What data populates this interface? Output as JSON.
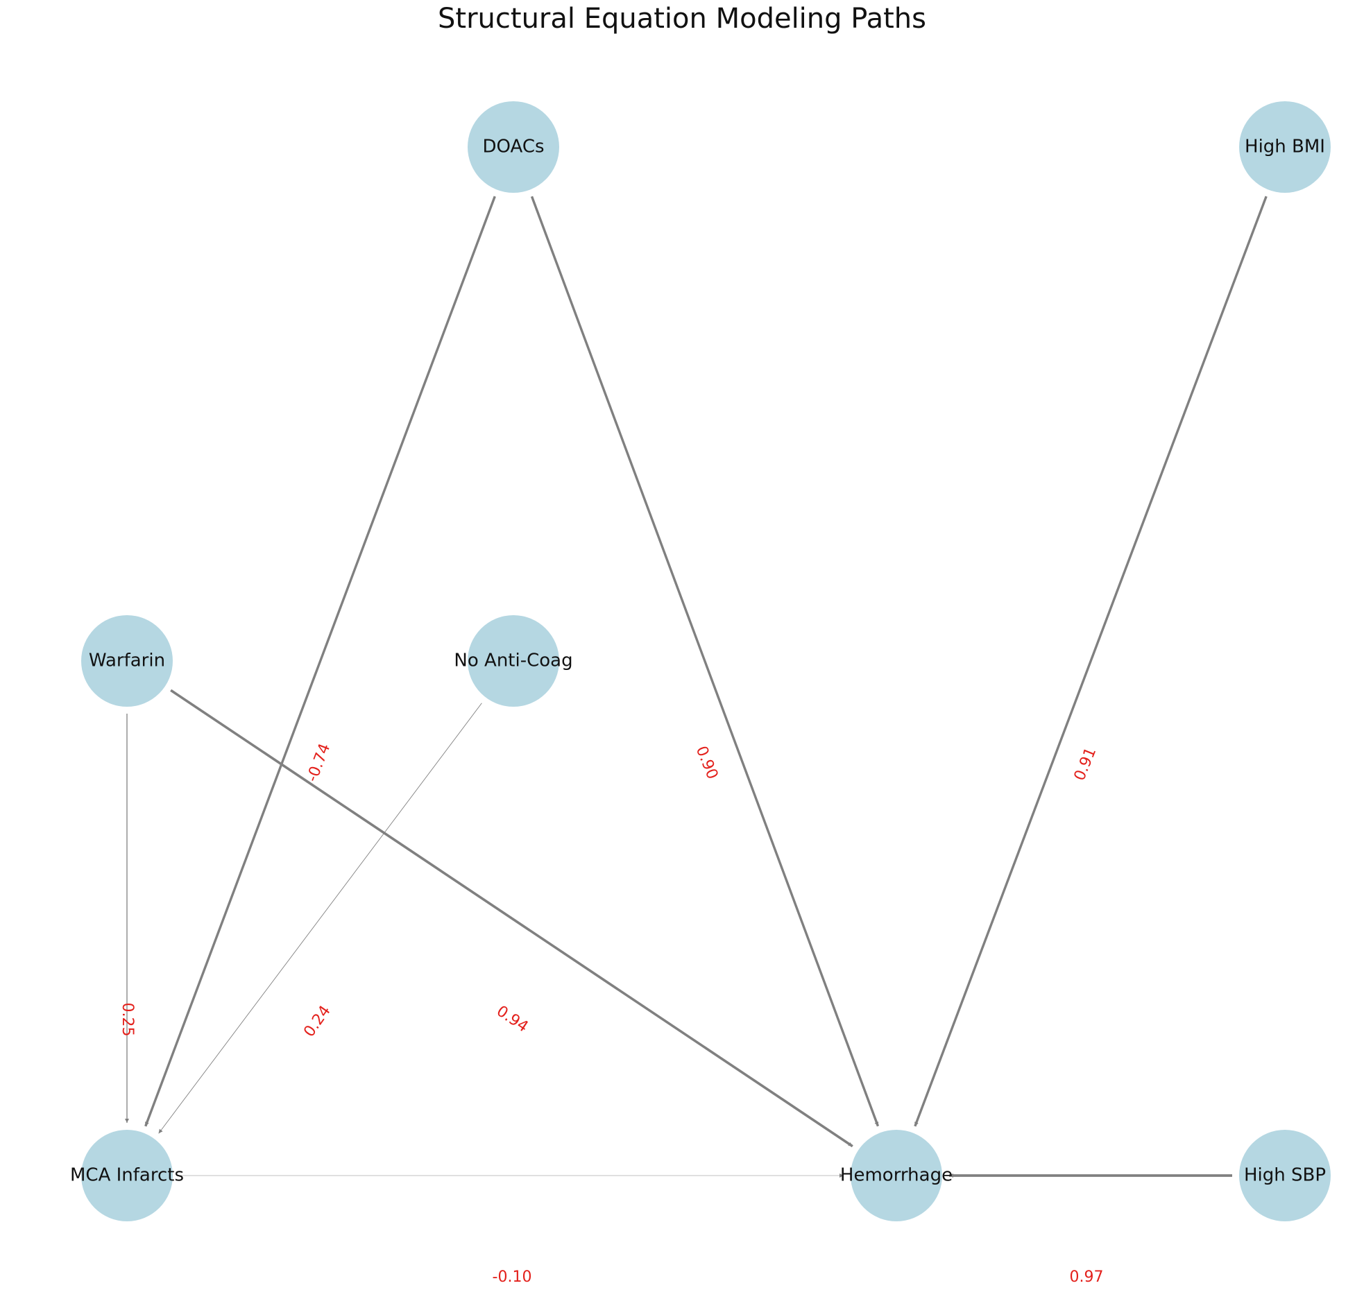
{
  "title": "Structural Equation Modeling Paths",
  "colors": {
    "node_fill": "#b5d7e2",
    "edge": "#808080",
    "edge_label": "#e3201b",
    "text": "#111111"
  },
  "nodes": [
    {
      "id": "doacs",
      "label": "DOACs"
    },
    {
      "id": "high_bmi",
      "label": "High BMI"
    },
    {
      "id": "warfarin",
      "label": "Warfarin"
    },
    {
      "id": "no_anticoag",
      "label": "No Anti-Coag"
    },
    {
      "id": "mca_infarcts",
      "label": "MCA Infarcts"
    },
    {
      "id": "hemorrhage",
      "label": "Hemorrhage"
    },
    {
      "id": "high_sbp",
      "label": "High SBP"
    }
  ],
  "edges": [
    {
      "from": "doacs",
      "to": "mca_infarcts",
      "label": "-0.74"
    },
    {
      "from": "doacs",
      "to": "hemorrhage",
      "label": "0.90"
    },
    {
      "from": "high_bmi",
      "to": "hemorrhage",
      "label": "0.91"
    },
    {
      "from": "warfarin",
      "to": "mca_infarcts",
      "label": "0.25"
    },
    {
      "from": "warfarin",
      "to": "hemorrhage",
      "label": "0.94"
    },
    {
      "from": "no_anticoag",
      "to": "mca_infarcts",
      "label": "0.24"
    },
    {
      "from": "mca_infarcts",
      "to": "hemorrhage",
      "label": "-0.10"
    },
    {
      "from": "high_sbp",
      "to": "hemorrhage",
      "label": "0.97"
    }
  ]
}
